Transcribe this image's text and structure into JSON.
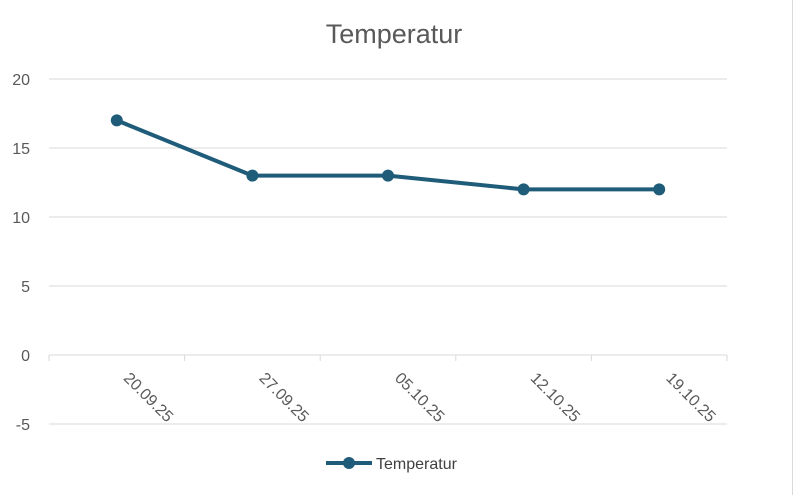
{
  "chart_data": {
    "type": "line",
    "title": "Temperatur",
    "categories": [
      "20.09.25",
      "27.09.25",
      "05.10.25",
      "12.10.25",
      "19.10.25"
    ],
    "series": [
      {
        "name": "Temperatur",
        "values": [
          17,
          13,
          13,
          12,
          12
        ],
        "color": "#1f5c7a"
      }
    ],
    "ylim": [
      -5,
      20
    ],
    "yticks": [
      "-5",
      "0",
      "5",
      "10",
      "15",
      "20"
    ],
    "grid": true,
    "legend": "bottom"
  }
}
